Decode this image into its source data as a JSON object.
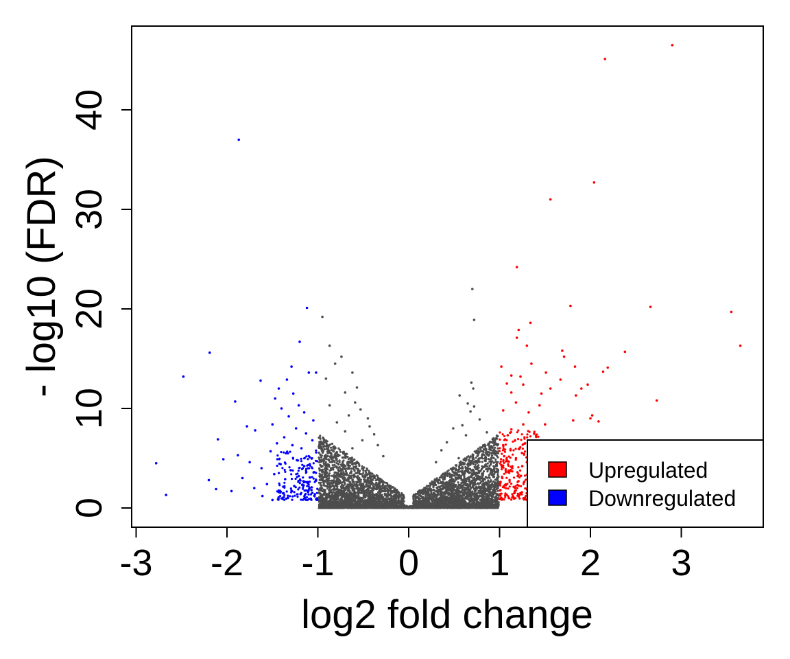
{
  "chart_data": {
    "type": "scatter",
    "title": "",
    "xlabel": "log2 fold change",
    "ylabel": "- log10 (FDR)",
    "xlim": [
      -3.0,
      3.9
    ],
    "ylim": [
      -2,
      48.5
    ],
    "x_ticks": [
      -3,
      -2,
      -1,
      0,
      1,
      2,
      3
    ],
    "x_tick_labels": [
      "-3",
      "-2",
      "-1",
      "0",
      "1",
      "2",
      "3"
    ],
    "y_ticks": [
      0,
      10,
      20,
      30,
      40
    ],
    "y_tick_labels": [
      "0",
      "10",
      "20",
      "30",
      "40"
    ],
    "grid": false,
    "legend": {
      "placement": "bottom-right",
      "entries": [
        {
          "label": "Upregulated",
          "color": "#ff0000"
        },
        {
          "label": "Downregulated",
          "color": "#0000ff"
        }
      ]
    },
    "series": [
      {
        "name": "Upregulated",
        "color": "#ff0000",
        "points": [
          [
            2.9,
            46.5
          ],
          [
            2.16,
            45.1
          ],
          [
            2.04,
            32.7
          ],
          [
            1.56,
            31.0
          ],
          [
            1.19,
            24.2
          ],
          [
            1.78,
            20.3
          ],
          [
            2.66,
            20.2
          ],
          [
            3.55,
            19.7
          ],
          [
            1.34,
            18.6
          ],
          [
            1.21,
            17.9
          ],
          [
            1.19,
            17.1
          ],
          [
            3.65,
            16.3
          ],
          [
            1.3,
            16.3
          ],
          [
            2.38,
            15.7
          ],
          [
            1.69,
            15.8
          ],
          [
            1.71,
            15.2
          ],
          [
            1.02,
            14.2
          ],
          [
            1.35,
            14.5
          ],
          [
            1.83,
            14.2
          ],
          [
            2.19,
            14.1
          ],
          [
            2.14,
            13.7
          ],
          [
            1.51,
            13.6
          ],
          [
            1.13,
            13.3
          ],
          [
            1.23,
            13.2
          ],
          [
            1.97,
            12.4
          ],
          [
            1.67,
            12.9
          ],
          [
            1.08,
            12.5
          ],
          [
            1.26,
            12.4
          ],
          [
            1.9,
            12.0
          ],
          [
            1.56,
            12.0
          ],
          [
            1.46,
            11.5
          ],
          [
            1.13,
            11.6
          ],
          [
            1.84,
            11.3
          ],
          [
            2.73,
            10.8
          ],
          [
            1.18,
            10.6
          ],
          [
            1.44,
            10.3
          ],
          [
            1.04,
            9.8
          ],
          [
            1.32,
            9.6
          ],
          [
            2.02,
            9.3
          ],
          [
            2.0,
            9.0
          ],
          [
            2.09,
            8.7
          ],
          [
            1.81,
            8.8
          ],
          [
            1.26,
            8.4
          ],
          [
            1.5,
            8.4
          ],
          [
            1.13,
            7.9
          ],
          [
            1.38,
            7.5
          ],
          [
            1.09,
            7.3
          ],
          [
            1.17,
            6.8
          ],
          [
            1.28,
            6.5
          ],
          [
            1.04,
            6.3
          ],
          [
            1.22,
            6.0
          ],
          [
            1.12,
            5.8
          ],
          [
            1.35,
            5.5
          ],
          [
            1.05,
            5.2
          ],
          [
            1.18,
            5.0
          ],
          [
            1.09,
            4.7
          ],
          [
            1.3,
            4.6
          ],
          [
            1.02,
            4.3
          ],
          [
            1.25,
            4.2
          ],
          [
            1.14,
            4.0
          ],
          [
            1.07,
            3.6
          ],
          [
            1.33,
            3.5
          ],
          [
            1.2,
            3.2
          ],
          [
            1.03,
            3.0
          ],
          [
            1.11,
            2.8
          ],
          [
            1.27,
            2.6
          ],
          [
            1.06,
            2.3
          ],
          [
            1.17,
            2.0
          ],
          [
            1.01,
            1.8
          ],
          [
            1.23,
            1.5
          ],
          [
            1.08,
            1.3
          ],
          [
            1.15,
            1.1
          ]
        ]
      },
      {
        "name": "Downregulated",
        "color": "#0000ff",
        "points": [
          [
            -1.87,
            37.0
          ],
          [
            -1.12,
            20.1
          ],
          [
            -1.2,
            16.7
          ],
          [
            -2.19,
            15.6
          ],
          [
            -1.29,
            14.2
          ],
          [
            -1.02,
            13.6
          ],
          [
            -1.1,
            13.6
          ],
          [
            -2.48,
            13.2
          ],
          [
            -1.63,
            12.8
          ],
          [
            -1.34,
            12.9
          ],
          [
            -1.43,
            12.0
          ],
          [
            -1.27,
            11.5
          ],
          [
            -1.47,
            11.0
          ],
          [
            -1.91,
            10.7
          ],
          [
            -1.21,
            10.3
          ],
          [
            -1.4,
            10.0
          ],
          [
            -1.15,
            9.6
          ],
          [
            -1.32,
            9.2
          ],
          [
            -1.05,
            8.8
          ],
          [
            -1.5,
            8.4
          ],
          [
            -1.78,
            8.2
          ],
          [
            -1.24,
            8.0
          ],
          [
            -1.69,
            7.8
          ],
          [
            -1.13,
            7.5
          ],
          [
            -1.37,
            7.1
          ],
          [
            -2.1,
            6.9
          ],
          [
            -1.06,
            6.8
          ],
          [
            -1.45,
            6.5
          ],
          [
            -1.28,
            6.3
          ],
          [
            -1.18,
            6.0
          ],
          [
            -1.52,
            5.7
          ],
          [
            -1.35,
            5.5
          ],
          [
            -1.88,
            5.3
          ],
          [
            -1.09,
            5.1
          ],
          [
            -2.04,
            4.9
          ],
          [
            -1.23,
            4.8
          ],
          [
            -1.75,
            4.6
          ],
          [
            -2.78,
            4.5
          ],
          [
            -1.41,
            4.4
          ],
          [
            -1.15,
            4.2
          ],
          [
            -1.62,
            4.0
          ],
          [
            -1.3,
            3.8
          ],
          [
            -1.04,
            3.6
          ],
          [
            -1.48,
            3.4
          ],
          [
            -1.21,
            3.2
          ],
          [
            -1.83,
            3.0
          ],
          [
            -1.36,
            2.9
          ],
          [
            -2.2,
            2.8
          ],
          [
            -1.11,
            2.6
          ],
          [
            -1.56,
            2.4
          ],
          [
            -1.26,
            2.2
          ],
          [
            -1.7,
            2.0
          ],
          [
            -2.12,
            1.9
          ],
          [
            -1.07,
            1.8
          ],
          [
            -1.43,
            1.6
          ],
          [
            -1.95,
            1.7
          ],
          [
            -1.19,
            1.4
          ],
          [
            -1.61,
            1.2
          ],
          [
            -2.67,
            1.3
          ],
          [
            -1.33,
            1.0
          ],
          [
            -1.02,
            0.9
          ],
          [
            -1.5,
            0.8
          ]
        ]
      },
      {
        "name": "",
        "color": "#4d4d4d",
        "points": [
          [
            0.7,
            22.0
          ],
          [
            -0.95,
            19.2
          ],
          [
            0.72,
            18.9
          ],
          [
            -0.87,
            16.3
          ],
          [
            -0.74,
            15.2
          ],
          [
            -0.81,
            14.5
          ],
          [
            -0.62,
            13.6
          ],
          [
            -0.91,
            13.0
          ],
          [
            0.69,
            12.6
          ],
          [
            -0.57,
            12.1
          ],
          [
            0.71,
            12.0
          ],
          [
            -0.7,
            11.6
          ],
          [
            0.56,
            11.3
          ],
          [
            -0.59,
            10.6
          ],
          [
            0.65,
            10.5
          ],
          [
            -0.87,
            10.3
          ],
          [
            0.72,
            10.2
          ],
          [
            -0.53,
            9.9
          ],
          [
            0.68,
            9.7
          ],
          [
            -0.66,
            9.3
          ],
          [
            -0.45,
            9.0
          ],
          [
            0.78,
            8.9
          ],
          [
            -0.79,
            8.6
          ],
          [
            0.59,
            8.3
          ],
          [
            -0.43,
            8.2
          ],
          [
            0.49,
            8.0
          ],
          [
            -0.7,
            7.7
          ],
          [
            0.86,
            7.6
          ],
          [
            -0.38,
            7.4
          ],
          [
            0.63,
            7.3
          ],
          [
            -0.94,
            7.0
          ],
          [
            0.95,
            6.9
          ],
          [
            -0.51,
            6.8
          ],
          [
            0.42,
            6.6
          ],
          [
            -0.34,
            6.3
          ],
          [
            0.82,
            6.2
          ],
          [
            -0.62,
            6.0
          ],
          [
            0.36,
            5.8
          ],
          [
            -0.79,
            5.6
          ],
          [
            0.91,
            5.5
          ],
          [
            -0.28,
            5.2
          ],
          [
            0.55,
            5.0
          ],
          [
            -0.88,
            4.8
          ],
          [
            0.3,
            4.6
          ]
        ]
      }
    ],
    "background_cloud": {
      "name": "",
      "color": "#4d4d4d",
      "x_range": [
        -0.99,
        0.99
      ],
      "shape": "v-shaped around x = 0"
    }
  }
}
